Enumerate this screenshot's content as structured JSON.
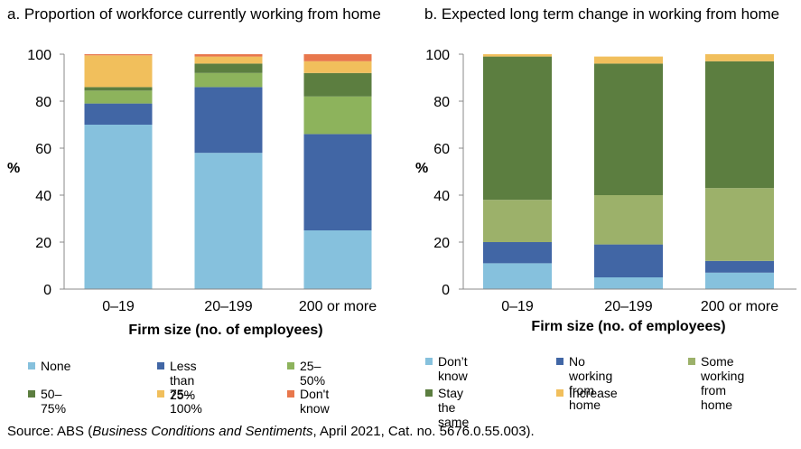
{
  "chart_data": [
    {
      "type": "bar",
      "stacked": true,
      "title": "a. Proportion of workforce currently working from home",
      "xlabel": "Firm size (no. of employees)",
      "ylabel": "%",
      "ylim": [
        0,
        100
      ],
      "yticks": [
        "0",
        "20",
        "40",
        "60",
        "80",
        "100"
      ],
      "categories": [
        "0–19",
        "20–199",
        "200 or more"
      ],
      "grid": false,
      "legend_position": "bottom",
      "series": [
        {
          "name": "None",
          "color": "#86c1dd",
          "values": [
            70,
            58,
            25
          ]
        },
        {
          "name": "Less than 25%",
          "color": "#4166a5",
          "values": [
            9,
            28,
            41
          ]
        },
        {
          "name": "25–50%",
          "color": "#8db35c",
          "values": [
            5.5,
            6,
            16
          ]
        },
        {
          "name": "50–75%",
          "color": "#5c7e40",
          "values": [
            1.5,
            4,
            10
          ]
        },
        {
          "name": "75–100%",
          "color": "#f1bf5c",
          "values": [
            13.5,
            3,
            5
          ]
        },
        {
          "name": "Don't know",
          "color": "#e8774c",
          "values": [
            0.5,
            1,
            3
          ]
        }
      ]
    },
    {
      "type": "bar",
      "stacked": true,
      "title": "b. Expected long term change in working from home",
      "xlabel": "Firm size (no. of employees)",
      "ylabel": "%",
      "ylim": [
        0,
        100
      ],
      "yticks": [
        "0",
        "20",
        "40",
        "60",
        "80",
        "100"
      ],
      "categories": [
        "0–19",
        "20–199",
        "200 or more"
      ],
      "grid": false,
      "legend_position": "bottom",
      "series": [
        {
          "name": "Don’t know",
          "color": "#86c1dd",
          "values": [
            11,
            5,
            7
          ]
        },
        {
          "name": "No working from home",
          "color": "#4166a5",
          "values": [
            9,
            14,
            5
          ]
        },
        {
          "name": "Some working from home",
          "color": "#9cb16a",
          "values": [
            18,
            21,
            31
          ]
        },
        {
          "name": "Stay the same",
          "color": "#5c7e40",
          "values": [
            61,
            56,
            54
          ]
        },
        {
          "name": "Increase",
          "color": "#f1bf5c",
          "values": [
            1,
            3,
            3
          ]
        }
      ]
    }
  ],
  "legend_b_labels": [
    "Don’t know",
    "No working\nfrom home",
    "Some working\nfrom home",
    "Stay the same",
    "Increase"
  ],
  "source": {
    "prefix": "Source: ABS (",
    "italic": "Business Conditions and Sentiments",
    "suffix": ", April 2021, Cat. no. 5676.0.55.003)."
  }
}
